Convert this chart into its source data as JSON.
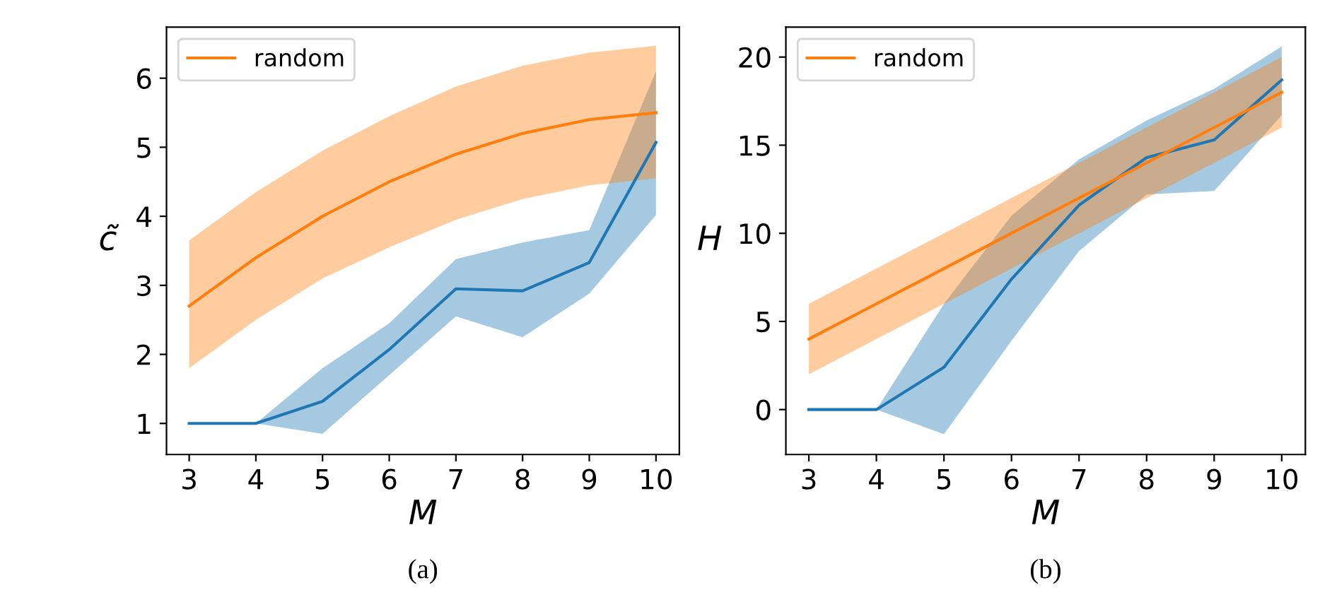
{
  "chart_data": [
    {
      "type": "line",
      "xlabel": "M",
      "ylabel": "c̃",
      "x": [
        3,
        4,
        5,
        6,
        7,
        8,
        9,
        10
      ],
      "xlim": [
        2.66,
        10.35
      ],
      "ylim": [
        0.55,
        6.74
      ],
      "xticks": [
        3,
        4,
        5,
        6,
        7,
        8,
        9,
        10
      ],
      "yticks": [
        1,
        2,
        3,
        4,
        5,
        6
      ],
      "grid": false,
      "legend": "top left",
      "annotations": [
        "(a)"
      ],
      "series": [
        {
          "color": "#1f77b4",
          "values": [
            1,
            1,
            1.32,
            2.07,
            2.95,
            2.92,
            3.33,
            5.07
          ],
          "lower": [
            1,
            1,
            0.85,
            1.7,
            2.55,
            2.25,
            2.88,
            4.02
          ],
          "upper": [
            1,
            1,
            1.8,
            2.45,
            3.38,
            3.62,
            3.8,
            6.1
          ]
        },
        {
          "name": "random",
          "color": "#ff7f0e",
          "values": [
            2.7,
            3.4,
            4.0,
            4.5,
            4.9,
            5.2,
            5.4,
            5.5
          ],
          "lower": [
            1.8,
            2.5,
            3.1,
            3.55,
            3.95,
            4.25,
            4.45,
            4.55
          ],
          "upper": [
            3.65,
            4.35,
            4.95,
            5.45,
            5.88,
            6.18,
            6.37,
            6.47
          ]
        }
      ]
    },
    {
      "type": "line",
      "xlabel": "M",
      "ylabel": "H",
      "x": [
        3,
        4,
        5,
        6,
        7,
        8,
        9,
        10
      ],
      "xlim": [
        2.66,
        10.35
      ],
      "ylim": [
        -2.55,
        21.7
      ],
      "xticks": [
        3,
        4,
        5,
        6,
        7,
        8,
        9,
        10
      ],
      "yticks": [
        0,
        5,
        10,
        15,
        20
      ],
      "grid": false,
      "legend": "top left",
      "annotations": [
        "(b)"
      ],
      "series": [
        {
          "color": "#1f77b4",
          "values": [
            0,
            0,
            2.4,
            7.4,
            11.6,
            14.3,
            15.3,
            18.7
          ],
          "lower": [
            0,
            0,
            -1.4,
            3.9,
            9.0,
            12.2,
            12.4,
            16.7
          ],
          "upper": [
            0,
            0,
            6,
            11,
            14.2,
            16.4,
            18.2,
            20.6
          ]
        },
        {
          "name": "random",
          "color": "#ff7f0e",
          "values": [
            4,
            6,
            8,
            10,
            12,
            14,
            16,
            18
          ],
          "lower": [
            2,
            4,
            6,
            8,
            10,
            12,
            14,
            16
          ],
          "upper": [
            6,
            8,
            10,
            12,
            14,
            16,
            18,
            20
          ]
        }
      ]
    }
  ]
}
